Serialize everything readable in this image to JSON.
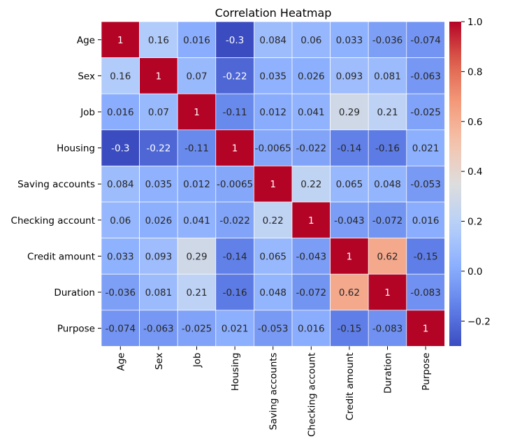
{
  "chart_data": {
    "type": "heatmap",
    "title": "Correlation Heatmap",
    "xlabel": "",
    "ylabel": "",
    "colormap": "coolwarm",
    "vmin": -0.3,
    "vmax": 1.0,
    "colorbar_ticks": [
      "−0.2",
      "0.0",
      "0.2",
      "0.4",
      "0.6",
      "0.8",
      "1.0"
    ],
    "colorbar_tick_values": [
      -0.2,
      0.0,
      0.2,
      0.4,
      0.6,
      0.8,
      1.0
    ],
    "row_labels": [
      "Age",
      "Sex",
      "Job",
      "Housing",
      "Saving accounts",
      "Checking account",
      "Credit amount",
      "Duration",
      "Purpose"
    ],
    "col_labels": [
      "Age",
      "Sex",
      "Job",
      "Housing",
      "Saving accounts",
      "Checking account",
      "Credit amount",
      "Duration",
      "Purpose"
    ],
    "values": [
      [
        1,
        0.16,
        0.016,
        -0.3,
        0.084,
        0.06,
        0.033,
        -0.036,
        -0.074
      ],
      [
        0.16,
        1,
        0.07,
        -0.22,
        0.035,
        0.026,
        0.093,
        0.081,
        -0.063
      ],
      [
        0.016,
        0.07,
        1,
        -0.11,
        0.012,
        0.041,
        0.29,
        0.21,
        -0.025
      ],
      [
        -0.3,
        -0.22,
        -0.11,
        1,
        -0.0065,
        -0.022,
        -0.14,
        -0.16,
        0.021
      ],
      [
        0.084,
        0.035,
        0.012,
        -0.0065,
        1,
        0.22,
        0.065,
        0.048,
        -0.053
      ],
      [
        0.06,
        0.026,
        0.041,
        -0.022,
        0.22,
        1,
        -0.043,
        -0.072,
        0.016
      ],
      [
        0.033,
        0.093,
        0.29,
        -0.14,
        0.065,
        -0.043,
        1,
        0.62,
        -0.15
      ],
      [
        -0.036,
        0.081,
        0.21,
        -0.16,
        0.048,
        -0.072,
        0.62,
        1,
        -0.083
      ],
      [
        -0.074,
        -0.063,
        -0.025,
        0.021,
        -0.053,
        0.016,
        -0.15,
        -0.083,
        1
      ]
    ],
    "annotations": [
      [
        "1",
        "0.16",
        "0.016",
        "-0.3",
        "0.084",
        "0.06",
        "0.033",
        "-0.036",
        "-0.074"
      ],
      [
        "0.16",
        "1",
        "0.07",
        "-0.22",
        "0.035",
        "0.026",
        "0.093",
        "0.081",
        "-0.063"
      ],
      [
        "0.016",
        "0.07",
        "1",
        "-0.11",
        "0.012",
        "0.041",
        "0.29",
        "0.21",
        "-0.025"
      ],
      [
        "-0.3",
        "-0.22",
        "-0.11",
        "1",
        "-0.0065",
        "-0.022",
        "-0.14",
        "-0.16",
        "0.021"
      ],
      [
        "0.084",
        "0.035",
        "0.012",
        "-0.0065",
        "1",
        "0.22",
        "0.065",
        "0.048",
        "-0.053"
      ],
      [
        "0.06",
        "0.026",
        "0.041",
        "-0.022",
        "0.22",
        "1",
        "-0.043",
        "-0.072",
        "0.016"
      ],
      [
        "0.033",
        "0.093",
        "0.29",
        "-0.14",
        "0.065",
        "-0.043",
        "1",
        "0.62",
        "-0.15"
      ],
      [
        "-0.036",
        "0.081",
        "0.21",
        "-0.16",
        "0.048",
        "-0.072",
        "0.62",
        "1",
        "-0.083"
      ],
      [
        "-0.074",
        "-0.063",
        "-0.025",
        "0.021",
        "-0.053",
        "0.016",
        "-0.15",
        "-0.083",
        "1"
      ]
    ]
  }
}
